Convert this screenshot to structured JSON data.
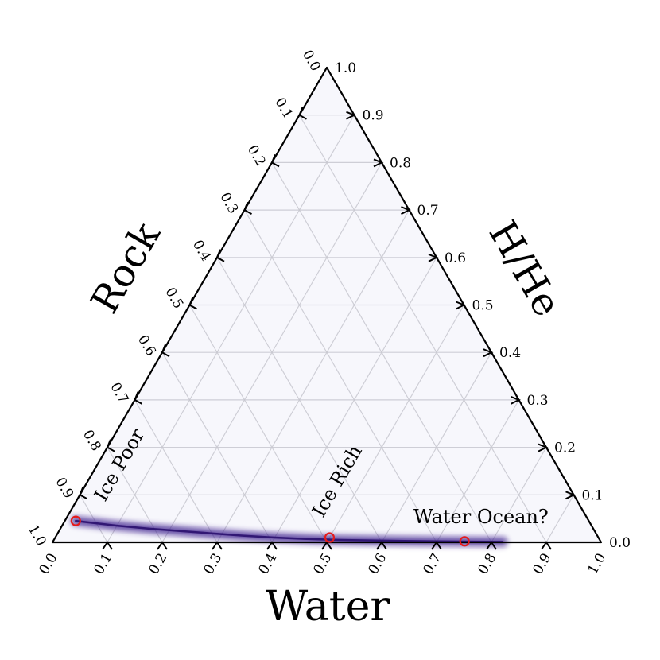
{
  "chart_data": {
    "type": "ternary",
    "axes": {
      "bottom": {
        "label": "Water"
      },
      "left": {
        "label": "Rock"
      },
      "right": {
        "label": "H/He"
      }
    },
    "range": [
      0,
      1
    ],
    "ticks": [
      0.0,
      0.1,
      0.2,
      0.3,
      0.4,
      0.5,
      0.6,
      0.7,
      0.8,
      0.9,
      1.0
    ],
    "grid": true,
    "density_band": {
      "description": "posterior density of compositions",
      "color": "#3a1f8c",
      "points": [
        {
          "water": 0.02,
          "hhe": 0.045
        },
        {
          "water": 0.06,
          "hhe": 0.04
        },
        {
          "water": 0.1,
          "hhe": 0.035
        },
        {
          "water": 0.16,
          "hhe": 0.029
        },
        {
          "water": 0.22,
          "hhe": 0.024
        },
        {
          "water": 0.28,
          "hhe": 0.019
        },
        {
          "water": 0.34,
          "hhe": 0.014
        },
        {
          "water": 0.4,
          "hhe": 0.01
        },
        {
          "water": 0.46,
          "hhe": 0.007
        },
        {
          "water": 0.52,
          "hhe": 0.005
        },
        {
          "water": 0.58,
          "hhe": 0.004
        },
        {
          "water": 0.64,
          "hhe": 0.003
        },
        {
          "water": 0.7,
          "hhe": 0.002
        },
        {
          "water": 0.76,
          "hhe": 0.0015
        },
        {
          "water": 0.82,
          "hhe": 0.001
        }
      ]
    },
    "markers": [
      {
        "label": "Ice Poor",
        "water": 0.02,
        "hhe": 0.045,
        "color": "#e41a1c"
      },
      {
        "label": "Ice Rich",
        "water": 0.5,
        "hhe": 0.01,
        "color": "#e41a1c"
      },
      {
        "label": "Water Ocean?",
        "water": 0.75,
        "hhe": 0.002,
        "color": "#e41a1c"
      }
    ]
  }
}
